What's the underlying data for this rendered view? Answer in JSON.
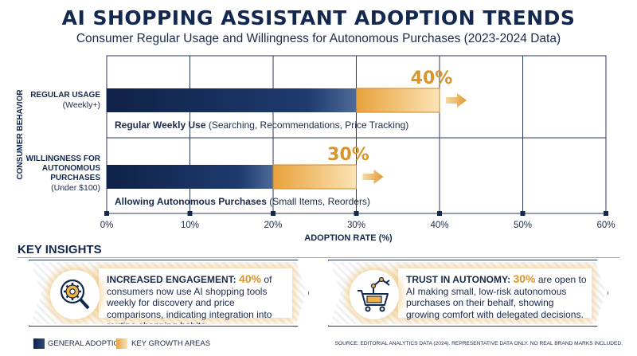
{
  "header": {
    "title": "AI SHOPPING ASSISTANT ADOPTION TRENDS",
    "subtitle": "Consumer Regular Usage and Willingness for Autonomous Purchases (2023-2024 Data)"
  },
  "chart_data": {
    "type": "bar",
    "orientation": "horizontal",
    "categories": [
      {
        "label_lines": [
          "REGULAR USAGE"
        ],
        "sub_label": "(Weekly+)",
        "value": 40,
        "value_label": "40%",
        "description_bold": "Regular Weekly Use",
        "description_rest": " (Searching, Recommendations, Price Tracking)"
      },
      {
        "label_lines": [
          "WILLINGNESS FOR",
          "AUTONOMOUS",
          "PURCHASES"
        ],
        "sub_label": "(Under $100)",
        "value": 30,
        "value_label": "30%",
        "description_bold": "Allowing Autonomous Purchases",
        "description_rest": " (Small Items, Reorders)"
      }
    ],
    "growth_segment": 10,
    "xlabel": "ADOPTION RATE (%)",
    "ylabel": "CONSUMER BEHAVIOR",
    "xlim": [
      0,
      60
    ],
    "ticks": [
      0,
      10,
      20,
      30,
      40,
      50,
      60
    ],
    "tick_labels": [
      "0%",
      "10%",
      "20%",
      "30%",
      "40%",
      "50%",
      "60%"
    ],
    "grid": true,
    "legend": [
      {
        "name": "GENERAL ADOPTION",
        "color": "#13284f"
      },
      {
        "name": "KEY GROWTH AREAS",
        "color": "#f0b246"
      }
    ]
  },
  "colors": {
    "navy": "#13284f",
    "gold": "#f0b246",
    "gold_text": "#d9952b",
    "grid": "#2a3a5a"
  },
  "insights": {
    "heading": "KEY INSIGHTS",
    "cards": [
      {
        "icon": "gear-magnifier-icon",
        "bold": "INCREASED ENGAGEMENT:",
        "pct": "40%",
        "rest": " of consumers now use AI shopping tools weekly for discovery and price comparisons, indicating integration into routine shopping habits."
      },
      {
        "icon": "robot-arm-cart-icon",
        "bold": "TRUST IN AUTONOMY:",
        "pct": "30%",
        "rest": " are open to AI making small, low-risk autonomous purchases on their behalf, showing growing comfort with delegated decisions."
      }
    ]
  },
  "footer": {
    "legend_general": "GENERAL ADOPTION",
    "legend_growth": "KEY GROWTH AREAS",
    "source": "SOURCE: EDITORIAL ANALYTICS DATA (2024). REPRESENTATIVE DATA ONLY. NO REAL BRAND MARKS INCLUDED."
  }
}
